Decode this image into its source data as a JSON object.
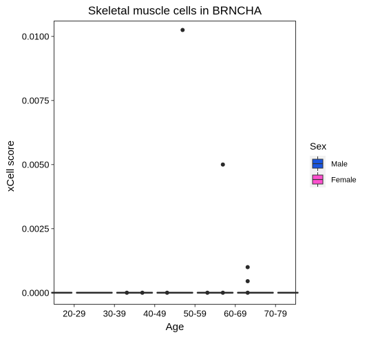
{
  "chart_data": {
    "type": "boxplot",
    "title": "Skeletal muscle cells in BRNCHA",
    "xlabel": "Age",
    "ylabel": "xCell score",
    "categories": [
      "20-29",
      "30-39",
      "40-49",
      "50-59",
      "60-69",
      "70-79"
    ],
    "ylim": [
      -0.00045,
      0.0106
    ],
    "yticks": [
      0.0,
      0.0025,
      0.005,
      0.0075,
      0.01
    ],
    "ytick_labels": [
      "0.0000",
      "0.0025",
      "0.0050",
      "0.0075",
      "0.0100"
    ],
    "grid": false,
    "legend": {
      "title": "Sex",
      "placement": "right",
      "entries": [
        {
          "label": "Male",
          "color": "#1a56e0"
        },
        {
          "label": "Female",
          "color": "#ff4fcf"
        }
      ]
    },
    "series": [
      {
        "name": "Male",
        "color": "#1a56e0",
        "boxes": [
          {
            "category": "20-29",
            "min": 0,
            "q1": 0,
            "median": 0,
            "q3": 0,
            "max": 0,
            "outliers": []
          },
          {
            "category": "30-39",
            "min": 0,
            "q1": 0,
            "median": 0,
            "q3": 0,
            "max": 0,
            "outliers": []
          },
          {
            "category": "40-49",
            "min": 0,
            "q1": 0,
            "median": 0,
            "q3": 0,
            "max": 0,
            "outliers": [
              0.0
            ]
          },
          {
            "category": "50-59",
            "min": 0,
            "q1": 0,
            "median": 0,
            "q3": 0,
            "max": 0,
            "outliers": [
              0.01025
            ]
          },
          {
            "category": "60-69",
            "min": 0,
            "q1": 0,
            "median": 0,
            "q3": 0,
            "max": 0,
            "outliers": [
              0.005,
              0.0
            ]
          },
          {
            "category": "70-79",
            "min": 0,
            "q1": 0,
            "median": 0,
            "q3": 0,
            "max": 0,
            "outliers": []
          }
        ]
      },
      {
        "name": "Female",
        "color": "#ff4fcf",
        "boxes": [
          {
            "category": "20-29",
            "min": 0,
            "q1": 0,
            "median": 0,
            "q3": 0,
            "max": 0,
            "outliers": []
          },
          {
            "category": "30-39",
            "min": 0,
            "q1": 0,
            "median": 0,
            "q3": 0,
            "max": 0,
            "outliers": [
              0.0
            ]
          },
          {
            "category": "40-49",
            "min": 0,
            "q1": 0,
            "median": 0,
            "q3": 0,
            "max": 0,
            "outliers": [
              0.0
            ]
          },
          {
            "category": "50-59",
            "min": 0,
            "q1": 0,
            "median": 0,
            "q3": 0,
            "max": 0,
            "outliers": [
              0.0
            ]
          },
          {
            "category": "60-69",
            "min": 0,
            "q1": 0,
            "median": 0,
            "q3": 0,
            "max": 0,
            "outliers": [
              0.001,
              0.00045,
              0.0
            ]
          },
          {
            "category": "70-79",
            "min": 0,
            "q1": 0,
            "median": 0,
            "q3": 0,
            "max": 0,
            "outliers": []
          }
        ]
      }
    ]
  }
}
